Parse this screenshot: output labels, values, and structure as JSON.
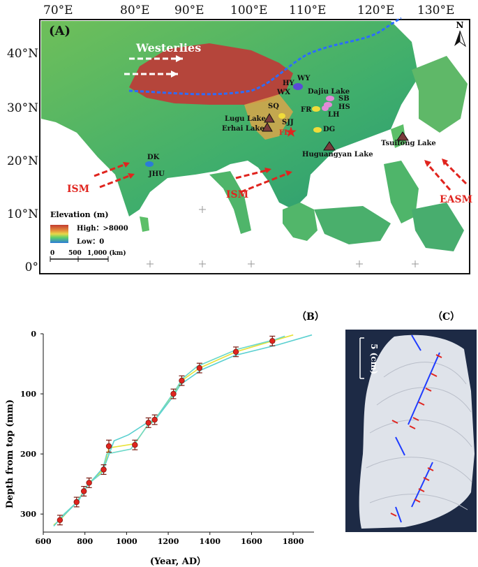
{
  "panel_a": {
    "label": "(A)",
    "lon_ticks": [
      "70°E",
      "80°E",
      "90°E",
      "100°E",
      "110°E",
      "120°E",
      "130°E"
    ],
    "lat_ticks": [
      "40°N",
      "30°N",
      "20°N",
      "10°N",
      "0°"
    ],
    "north_label": "N",
    "westerlies": "Westerlies",
    "monsoon_labels": [
      "ISM",
      "ISM",
      "EASM"
    ],
    "sites": {
      "wy": "WY",
      "hy": "HY",
      "wx": "WX",
      "dajiu": "Dajiu Lake",
      "sb": "SB",
      "hs": "HS",
      "sq": "SQ",
      "fr": "FR",
      "lh": "LH",
      "lugu": "Lugu Lake",
      "sjj": "SJJ",
      "erhai": "Erhai Lake",
      "fl": "FL",
      "dg": "DG",
      "dk": "DK",
      "jhu": "JHU",
      "huguangyan": "Huguangyan Lake",
      "tsuifong": "Tsuifong Lake"
    },
    "legend": {
      "title": "Elevation (m)",
      "high": "High：>8000",
      "low": "Low：0",
      "scale_ticks": [
        "0",
        "500",
        "1,000 (km)"
      ]
    },
    "colors": {
      "ocean": "#ffffff",
      "low": "#1f9a6a",
      "mid": "#d9b33a",
      "high": "#b5453b",
      "border": "#2b6cff",
      "arrow": "#e0241e",
      "frame": "#111111"
    }
  },
  "panel_b": {
    "label": "（B）"
  },
  "panel_c": {
    "label": "（C）",
    "scale": "5 (cm)"
  },
  "chart_data": {
    "type": "line",
    "title": "",
    "xlabel": "(Year, AD）",
    "ylabel": "Depth from top (mm)",
    "xlim": [
      600,
      1900
    ],
    "ylim": [
      0,
      330
    ],
    "x_ticks": [
      "600",
      "800",
      "1000",
      "1200",
      "1400",
      "1600",
      "1800"
    ],
    "y_ticks": [
      "0",
      "100",
      "200",
      "300"
    ],
    "points": [
      {
        "x": 1700,
        "y": 12,
        "err": 8
      },
      {
        "x": 1525,
        "y": 30,
        "err": 8
      },
      {
        "x": 1350,
        "y": 57,
        "err": 8
      },
      {
        "x": 1265,
        "y": 78,
        "err": 8
      },
      {
        "x": 1225,
        "y": 100,
        "err": 8
      },
      {
        "x": 1135,
        "y": 143,
        "err": 8
      },
      {
        "x": 1105,
        "y": 148,
        "err": 8
      },
      {
        "x": 1040,
        "y": 185,
        "err": 8
      },
      {
        "x": 915,
        "y": 187,
        "err": 10
      },
      {
        "x": 890,
        "y": 226,
        "err": 8
      },
      {
        "x": 820,
        "y": 248,
        "err": 8
      },
      {
        "x": 795,
        "y": 262,
        "err": 8
      },
      {
        "x": 760,
        "y": 280,
        "err": 8
      },
      {
        "x": 680,
        "y": 310,
        "err": 8
      }
    ],
    "series": [
      {
        "color": "#e8e23a",
        "x": [
          650,
          680,
          760,
          795,
          820,
          890,
          915,
          1040,
          1105,
          1135,
          1225,
          1265,
          1350,
          1525,
          1700,
          1800
        ],
        "y": [
          318,
          310,
          280,
          262,
          248,
          226,
          190,
          183,
          150,
          143,
          100,
          78,
          57,
          30,
          12,
          2
        ]
      },
      {
        "color": "#5ad0d0",
        "x": [
          650,
          690,
          770,
          800,
          830,
          895,
          940,
          1010,
          1090,
          1140,
          1220,
          1260,
          1360,
          1520,
          1730,
          1890
        ],
        "y": [
          320,
          305,
          278,
          258,
          246,
          220,
          178,
          168,
          150,
          142,
          106,
          84,
          60,
          36,
          18,
          2
        ]
      },
      {
        "color": "#6ad8c8",
        "x": [
          660,
          700,
          750,
          790,
          815,
          880,
          905,
          1020,
          1100,
          1130,
          1230,
          1270,
          1340,
          1530,
          1710,
          1760
        ],
        "y": [
          316,
          300,
          284,
          266,
          250,
          232,
          200,
          192,
          153,
          146,
          96,
          74,
          54,
          26,
          10,
          4
        ]
      }
    ]
  }
}
